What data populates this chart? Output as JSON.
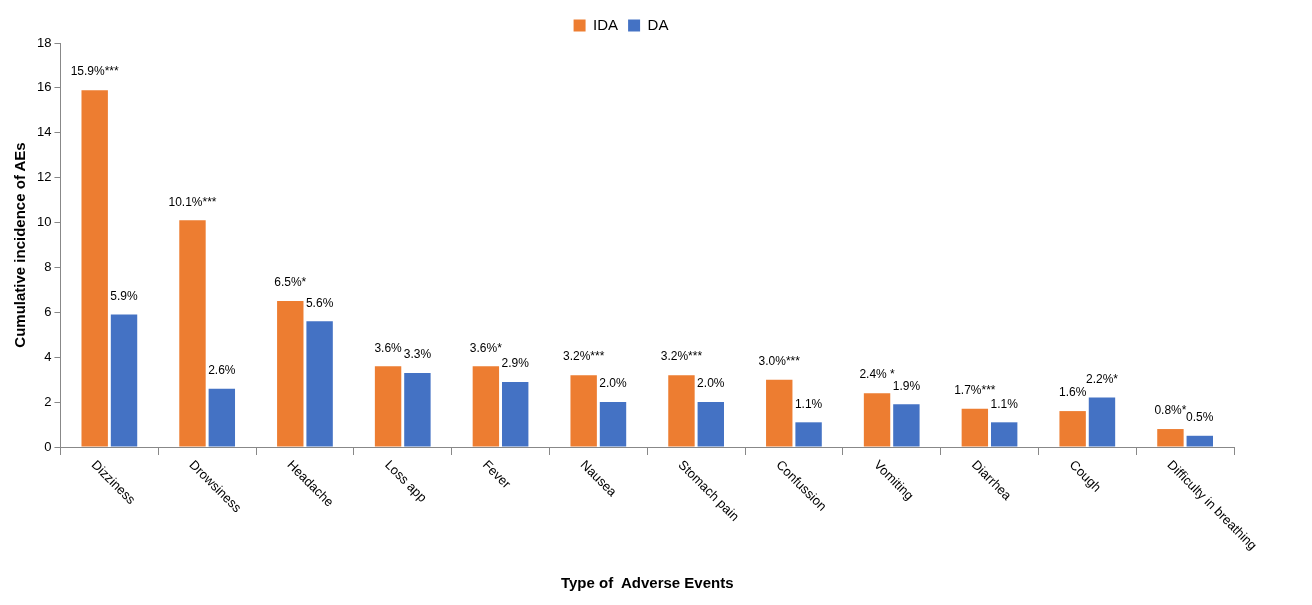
{
  "chart_data": {
    "type": "bar",
    "xlabel": "Type of  Adverse Events",
    "ylabel": "Cumulative incidence of AEs",
    "categories": [
      "Dizziness",
      "Drowsiness",
      "Headache",
      "Loss app",
      "Fever",
      "Nausea",
      "Stomach pain",
      "Confussion",
      "Vomiting",
      "Diarrhea",
      "Cough",
      "Difficulty in breathing"
    ],
    "series": [
      {
        "name": "IDA",
        "color": "#ed7d31",
        "values": [
          15.9,
          10.1,
          6.5,
          3.6,
          3.6,
          3.2,
          3.2,
          3.0,
          2.4,
          1.7,
          1.6,
          0.8
        ],
        "value_labels": [
          "15.9%***",
          "10.1%***",
          "6.5%*",
          "3.6%",
          "3.6%*",
          "3.2%***",
          "3.2%***",
          "3.0%***",
          "2.4% *",
          "1.7%***",
          "1.6%",
          "0.8%*"
        ]
      },
      {
        "name": "DA",
        "color": "#4472c4",
        "values": [
          5.9,
          2.6,
          5.6,
          3.3,
          2.9,
          2.0,
          2.0,
          1.1,
          1.9,
          1.1,
          2.2,
          0.5
        ],
        "value_labels": [
          "5.9%",
          "2.6%",
          "5.6%",
          "3.3%",
          "2.9%",
          "2.0%",
          "2.0%",
          "1.1%",
          "1.9%",
          "1.1%",
          "2.2%*",
          "0.5%"
        ]
      }
    ],
    "ylim": [
      0,
      18
    ],
    "yticks": [
      0,
      2,
      4,
      6,
      8,
      10,
      12,
      14,
      16,
      18
    ],
    "grid": false,
    "legend": "top"
  }
}
